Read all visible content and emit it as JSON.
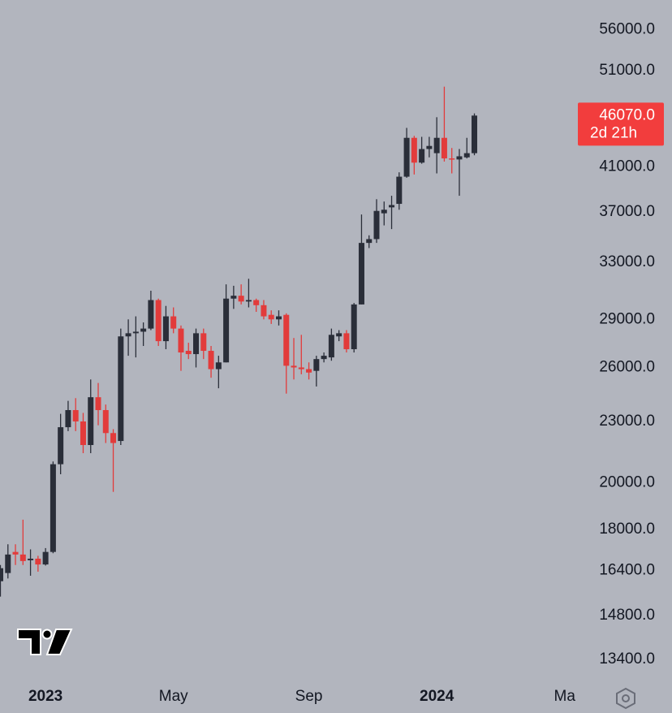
{
  "chart_data": {
    "type": "candlestick",
    "log_scale": true,
    "grid": false,
    "up_color": "#2a2e39",
    "down_color": "#e23b3b",
    "price_tag_color": "#f23d3d",
    "ylim": [
      12840,
      59900
    ],
    "yticks": [
      {
        "value": 56000,
        "label": "56000.0"
      },
      {
        "value": 51000,
        "label": "51000.0"
      },
      {
        "value": 41000,
        "label": "41000.0"
      },
      {
        "value": 37000,
        "label": "37000.0"
      },
      {
        "value": 33000,
        "label": "33000.0"
      },
      {
        "value": 29000,
        "label": "29000.0"
      },
      {
        "value": 26000,
        "label": "26000.0"
      },
      {
        "value": 23000,
        "label": "23000.0"
      },
      {
        "value": 20000,
        "label": "20000.0"
      },
      {
        "value": 18000,
        "label": "18000.0"
      },
      {
        "value": 16400,
        "label": "16400.0"
      },
      {
        "value": 14800,
        "label": "14800.0"
      },
      {
        "value": 13400,
        "label": "13400.0"
      }
    ],
    "current_price": {
      "value": 46070,
      "label": "46070.0"
    },
    "countdown": "2d 21h",
    "categories": [
      null,
      null,
      null,
      null,
      null,
      null,
      "2023",
      null,
      null,
      null,
      null,
      null,
      null,
      null,
      null,
      null,
      null,
      null,
      null,
      null,
      null,
      null,
      null,
      "May",
      null,
      null,
      null,
      null,
      null,
      null,
      null,
      null,
      null,
      null,
      null,
      null,
      null,
      null,
      null,
      null,
      null,
      "Sep",
      null,
      null,
      null,
      null,
      null,
      null,
      null,
      null,
      null,
      null,
      null,
      null,
      null,
      null,
      null,
      null,
      "2024",
      null,
      null,
      null,
      null,
      null,
      null,
      null,
      null,
      null,
      null,
      null,
      null,
      null,
      null,
      null,
      null,
      "Ma"
    ],
    "open": [
      16000,
      16300,
      17100,
      17000,
      16780,
      16840,
      16620,
      17100,
      20870,
      22700,
      23600,
      23000,
      21800,
      24300,
      23600,
      22400,
      22000,
      27900,
      28100,
      28200,
      28400,
      30300,
      27600,
      29200,
      28400,
      27000,
      26800,
      28100,
      27000,
      25900,
      26300,
      30400,
      30600,
      30200,
      30300,
      29950,
      29300,
      29000,
      29300,
      26100,
      26000,
      25900,
      25800,
      26500,
      26600,
      27900,
      28100,
      27100,
      30000,
      34500,
      34800,
      36900,
      37400,
      37700,
      40100,
      43800,
      41400,
      42700,
      42300,
      43800,
      41800,
      41700,
      41900,
      42300,
      null,
      null,
      null,
      null,
      null,
      null,
      null,
      null,
      null,
      null,
      null,
      null
    ],
    "high": [
      16600,
      17400,
      17400,
      18400,
      17200,
      16950,
      17250,
      21000,
      23400,
      24100,
      24250,
      23450,
      25300,
      25100,
      23900,
      22600,
      28400,
      29000,
      29200,
      28800,
      30950,
      30400,
      29900,
      29800,
      28600,
      27500,
      28400,
      28400,
      27300,
      26700,
      31400,
      31300,
      31400,
      31800,
      30400,
      30300,
      29600,
      29600,
      29400,
      27800,
      28000,
      26300,
      26700,
      26900,
      28400,
      28300,
      28300,
      30100,
      36800,
      35100,
      38100,
      37900,
      38400,
      40500,
      44800,
      44000,
      43900,
      43900,
      45900,
      49200,
      42800,
      42700,
      43800,
      46300,
      null,
      null,
      null,
      null,
      null,
      null,
      null,
      null,
      null,
      null,
      null,
      null
    ],
    "low": [
      15450,
      16100,
      16600,
      16600,
      16200,
      16350,
      16580,
      17050,
      20400,
      22500,
      22500,
      21400,
      21400,
      22800,
      21900,
      19600,
      21800,
      26700,
      26600,
      27300,
      28300,
      27300,
      27100,
      28100,
      25800,
      26500,
      26000,
      26500,
      25400,
      24800,
      26300,
      29700,
      30000,
      29800,
      29500,
      29000,
      28700,
      28600,
      24500,
      25300,
      25600,
      25300,
      24900,
      26300,
      26400,
      27600,
      26900,
      26900,
      30000,
      34100,
      34500,
      35900,
      35600,
      37200,
      40000,
      40300,
      41300,
      41900,
      40400,
      41500,
      40400,
      38400,
      41800,
      42100,
      null,
      null,
      null,
      null,
      null,
      null,
      null,
      null,
      null,
      null,
      null,
      null
    ],
    "close": [
      16480,
      17000,
      17000,
      16750,
      16840,
      16620,
      17100,
      20870,
      22700,
      23600,
      23000,
      21800,
      24300,
      23600,
      22400,
      21900,
      27900,
      28100,
      28200,
      28400,
      30300,
      27600,
      29200,
      28400,
      26900,
      26800,
      28100,
      27000,
      25900,
      26300,
      30400,
      30600,
      30200,
      30300,
      29950,
      29200,
      29000,
      29200,
      26100,
      26000,
      25900,
      25700,
      26500,
      26700,
      28000,
      28100,
      27100,
      30000,
      34500,
      34800,
      37100,
      37200,
      37600,
      40100,
      43800,
      41400,
      42700,
      43000,
      43800,
      41800,
      41700,
      42000,
      42300,
      46070,
      null,
      null,
      null,
      null,
      null,
      null,
      null,
      null,
      null,
      null,
      null,
      null
    ]
  }
}
